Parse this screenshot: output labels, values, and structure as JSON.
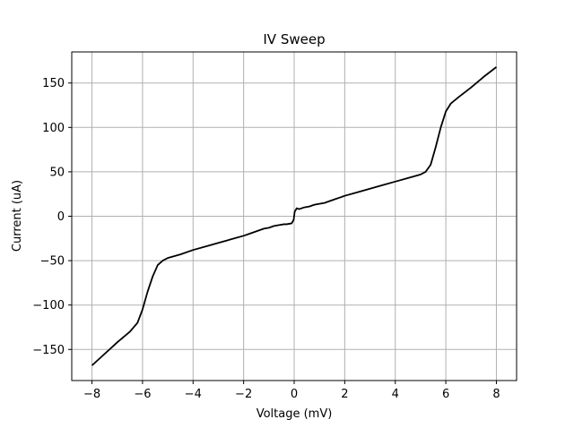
{
  "chart_data": {
    "type": "line",
    "title": "IV Sweep",
    "xlabel": "Voltage (mV)",
    "ylabel": "Current (uA)",
    "xlim": [
      -8.8,
      8.8
    ],
    "ylim": [
      -185,
      185
    ],
    "xticks": [
      -8,
      -6,
      -4,
      -2,
      0,
      2,
      4,
      6,
      8
    ],
    "xtick_labels": [
      "−8",
      "−6",
      "−4",
      "−2",
      "0",
      "2",
      "4",
      "6",
      "8"
    ],
    "yticks": [
      -150,
      -100,
      -50,
      0,
      50,
      100,
      150
    ],
    "ytick_labels": [
      "−150",
      "−100",
      "−50",
      "0",
      "50",
      "100",
      "150"
    ],
    "grid": true,
    "series": [
      {
        "color": "#000000",
        "x": [
          -8.0,
          -7.5,
          -7.0,
          -6.5,
          -6.2,
          -6.0,
          -5.8,
          -5.6,
          -5.4,
          -5.2,
          -5.0,
          -4.5,
          -4.0,
          -3.5,
          -3.0,
          -2.5,
          -2.0,
          -1.8,
          -1.6,
          -1.4,
          -1.2,
          -1.0,
          -0.8,
          -0.6,
          -0.4,
          -0.3,
          -0.2,
          -0.1,
          -0.02,
          0.02,
          0.1,
          0.2,
          0.3,
          0.4,
          0.6,
          0.8,
          1.0,
          1.2,
          1.4,
          1.6,
          1.8,
          2.0,
          2.5,
          3.0,
          3.5,
          4.0,
          4.5,
          5.0,
          5.2,
          5.4,
          5.6,
          5.8,
          6.0,
          6.2,
          6.5,
          7.0,
          7.5,
          8.0
        ],
        "y": [
          -168,
          -155,
          -142,
          -130,
          -120,
          -105,
          -85,
          -68,
          -55,
          -50,
          -47,
          -43,
          -38,
          -34,
          -30,
          -26,
          -22,
          -20,
          -18,
          -16,
          -14,
          -13,
          -11,
          -10,
          -9,
          -9,
          -8.5,
          -8,
          -4,
          5,
          9,
          8,
          9,
          10,
          11,
          13,
          14,
          15,
          17,
          19,
          21,
          23,
          27,
          31,
          35,
          39,
          43,
          47,
          50,
          58,
          78,
          100,
          118,
          127,
          134,
          145,
          157,
          168
        ]
      }
    ]
  }
}
